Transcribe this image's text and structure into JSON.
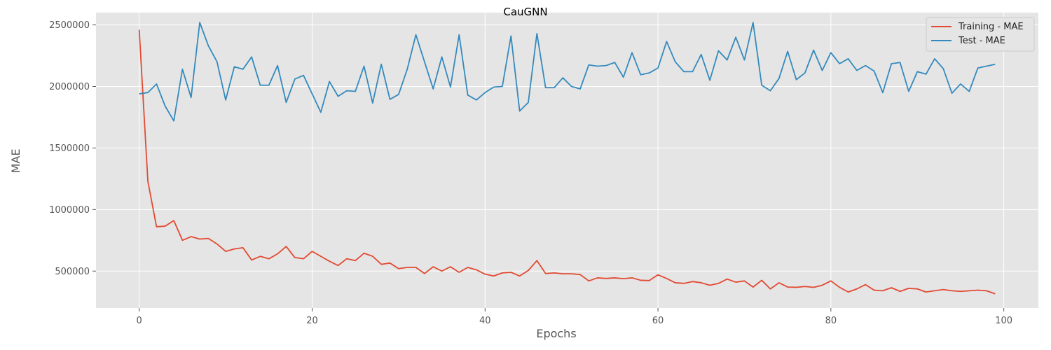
{
  "chart_data": {
    "type": "line",
    "title": "CauGNN",
    "xlabel": "Epochs",
    "ylabel": "MAE",
    "xlim": [
      -5,
      104
    ],
    "ylim": [
      200000,
      2600000
    ],
    "xticks": [
      0,
      20,
      40,
      60,
      80,
      100
    ],
    "yticks": [
      500000,
      1000000,
      1500000,
      2000000,
      2500000
    ],
    "xtick_labels": [
      "0",
      "20",
      "40",
      "60",
      "80",
      "100"
    ],
    "ytick_labels": [
      "500000",
      "1000000",
      "1500000",
      "2000000",
      "2500000"
    ],
    "grid": true,
    "legend_position": "top-right",
    "series": [
      {
        "name": "Training - MAE",
        "color": "#E24A33",
        "x": [
          0,
          1,
          2,
          3,
          4,
          5,
          6,
          7,
          8,
          9,
          10,
          11,
          12,
          13,
          14,
          15,
          16,
          17,
          18,
          19,
          20,
          21,
          22,
          23,
          24,
          25,
          26,
          27,
          28,
          29,
          30,
          31,
          32,
          33,
          34,
          35,
          36,
          37,
          38,
          39,
          40,
          41,
          42,
          43,
          44,
          45,
          46,
          47,
          48,
          49,
          50,
          51,
          52,
          53,
          54,
          55,
          56,
          57,
          58,
          59,
          60,
          61,
          62,
          63,
          64,
          65,
          66,
          67,
          68,
          69,
          70,
          71,
          72,
          73,
          74,
          75,
          76,
          77,
          78,
          79,
          80,
          81,
          82,
          83,
          84,
          85,
          86,
          87,
          88,
          89,
          90,
          91,
          92,
          93,
          94,
          95,
          96,
          97,
          98,
          99
        ],
        "values": [
          2460000,
          1230000,
          860000,
          865000,
          910000,
          750000,
          780000,
          760000,
          765000,
          720000,
          660000,
          680000,
          690000,
          590000,
          620000,
          600000,
          640000,
          700000,
          610000,
          600000,
          660000,
          620000,
          580000,
          545000,
          600000,
          585000,
          645000,
          620000,
          555000,
          565000,
          520000,
          530000,
          530000,
          480000,
          535000,
          500000,
          535000,
          490000,
          530000,
          510000,
          475000,
          460000,
          485000,
          490000,
          460000,
          505000,
          585000,
          480000,
          485000,
          478000,
          478000,
          472000,
          420000,
          445000,
          440000,
          445000,
          438000,
          445000,
          425000,
          423000,
          470000,
          440000,
          405000,
          400000,
          415000,
          405000,
          385000,
          400000,
          435000,
          410000,
          420000,
          370000,
          425000,
          355000,
          405000,
          370000,
          368000,
          375000,
          368000,
          385000,
          420000,
          368000,
          330000,
          355000,
          390000,
          345000,
          340000,
          365000,
          335000,
          360000,
          355000,
          330000,
          340000,
          350000,
          340000,
          335000,
          340000,
          345000,
          340000,
          315000
        ]
      },
      {
        "name": "Test - MAE",
        "color": "#348ABD",
        "x": [
          0,
          1,
          2,
          3,
          4,
          5,
          6,
          7,
          8,
          9,
          10,
          11,
          12,
          13,
          14,
          15,
          16,
          17,
          18,
          19,
          20,
          21,
          22,
          23,
          24,
          25,
          26,
          27,
          28,
          29,
          30,
          31,
          32,
          33,
          34,
          35,
          36,
          37,
          38,
          39,
          40,
          41,
          42,
          43,
          44,
          45,
          46,
          47,
          48,
          49,
          50,
          51,
          52,
          53,
          54,
          55,
          56,
          57,
          58,
          59,
          60,
          61,
          62,
          63,
          64,
          65,
          66,
          67,
          68,
          69,
          70,
          71,
          72,
          73,
          74,
          75,
          76,
          77,
          78,
          79,
          80,
          81,
          82,
          83,
          84,
          85,
          86,
          87,
          88,
          89,
          90,
          91,
          92,
          93,
          94,
          95,
          96,
          97,
          98,
          99
        ],
        "values": [
          1940000,
          1950000,
          2020000,
          1840000,
          1720000,
          2140000,
          1910000,
          2520000,
          2330000,
          2200000,
          1890000,
          2160000,
          2140000,
          2240000,
          2010000,
          2010000,
          2170000,
          1870000,
          2060000,
          2090000,
          1940000,
          1790000,
          2040000,
          1920000,
          1965000,
          1960000,
          2165000,
          1865000,
          2180000,
          1895000,
          1935000,
          2140000,
          2420000,
          2200000,
          1980000,
          2240000,
          1995000,
          2420000,
          1930000,
          1890000,
          1950000,
          1995000,
          2000000,
          2410000,
          1800000,
          1870000,
          2430000,
          1990000,
          1990000,
          2070000,
          2000000,
          1980000,
          2175000,
          2165000,
          2170000,
          2195000,
          2075000,
          2275000,
          2095000,
          2110000,
          2150000,
          2365000,
          2200000,
          2120000,
          2120000,
          2260000,
          2050000,
          2290000,
          2215000,
          2400000,
          2215000,
          2520000,
          2010000,
          1965000,
          2065000,
          2285000,
          2055000,
          2110000,
          2295000,
          2130000,
          2275000,
          2185000,
          2225000,
          2130000,
          2170000,
          2125000,
          1950000,
          2185000,
          2195000,
          1960000,
          2120000,
          2100000,
          2225000,
          2145000,
          1945000,
          2020000,
          1960000,
          2150000,
          2165000,
          2180000
        ]
      }
    ]
  }
}
